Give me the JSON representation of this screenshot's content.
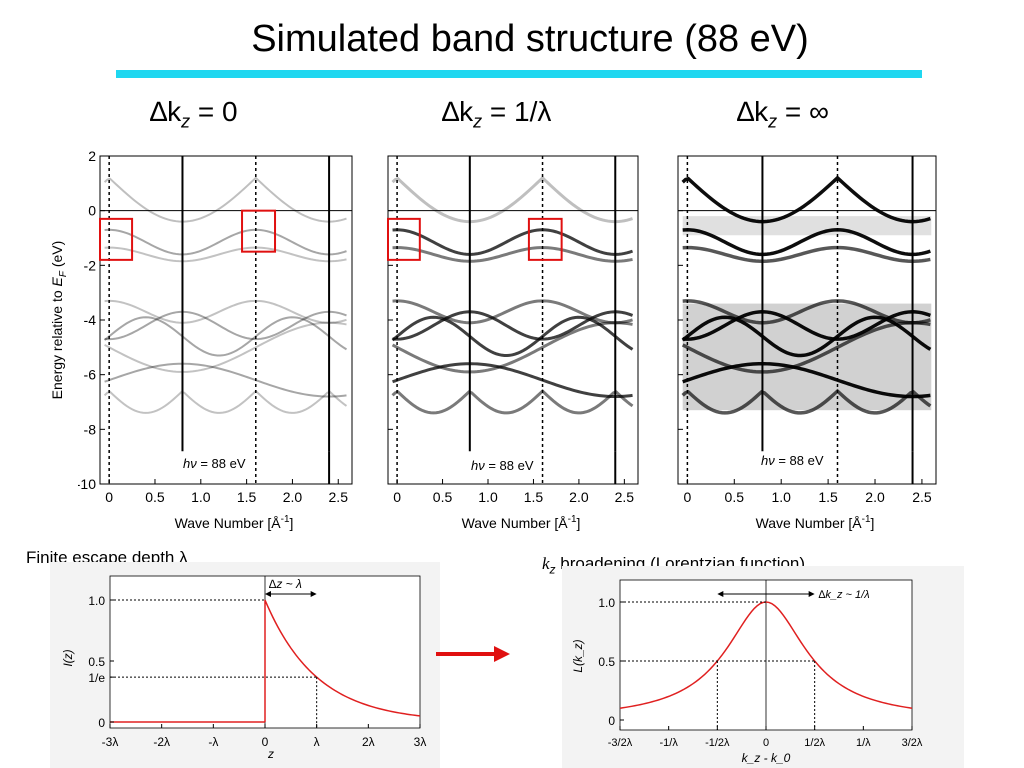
{
  "title": "Simulated band structure (88 eV)",
  "headers": [
    {
      "prefix": "∆k",
      "sub": "z",
      "suffix": " = 0"
    },
    {
      "prefix": "∆k",
      "sub": "z",
      "suffix": " = 1/λ"
    },
    {
      "prefix": "∆k",
      "sub": "z",
      "suffix": " = ∞"
    }
  ],
  "band_plots": {
    "ylabel": "Energy relative to E_F (eV)",
    "ylabel_main": "Energy relative to ",
    "ylabel_E": "E",
    "ylabel_F": "F",
    "ylabel_unit": " (eV)",
    "xlabel": "Wave Number [Å⁻¹]",
    "xlabel_text": "Wave Number [Å",
    "xlabel_exp": "-1",
    "xlabel_close": "]",
    "yticks": [
      "2",
      "0",
      "-2",
      "-4",
      "-6",
      "-8",
      "-10"
    ],
    "xticks": [
      "0",
      "0.5",
      "1.0",
      "1.5",
      "2.0",
      "2.5"
    ],
    "photon_label_h": "h",
    "photon_label_nu": "ν",
    "photon_label_value": " = 88 eV",
    "x_range": [
      -0.1,
      2.65
    ],
    "y_range": [
      -10,
      2
    ]
  },
  "escape_plot": {
    "label": "Finite escape depth λ",
    "ylabel": "I(z)",
    "xlabel": "z",
    "yticks": [
      "1.0",
      "0.5",
      "1/e",
      "0"
    ],
    "xticks": [
      "-3λ",
      "-2λ",
      "-λ",
      "0",
      "λ",
      "2λ",
      "3λ"
    ],
    "annotation": "∆z ~ λ"
  },
  "lorentz_plot": {
    "label_k": "k",
    "label_sub": "z",
    "label_rest": " broadening (Lorentzian function)",
    "ylabel": "L(k_z)",
    "xlabel": "k_z - k_0",
    "yticks": [
      "1.0",
      "0.5",
      "0"
    ],
    "xticks": [
      "-3/2λ",
      "-1/λ",
      "-1/2λ",
      "0",
      "1/2λ",
      "1/λ",
      "3/2λ"
    ],
    "annotation": "∆k_z ~ 1/λ"
  },
  "colors": {
    "accent_rule": "#1fd7f0",
    "highlight": "#e01010",
    "curve": "#e02020",
    "arrow": "#e01010"
  }
}
